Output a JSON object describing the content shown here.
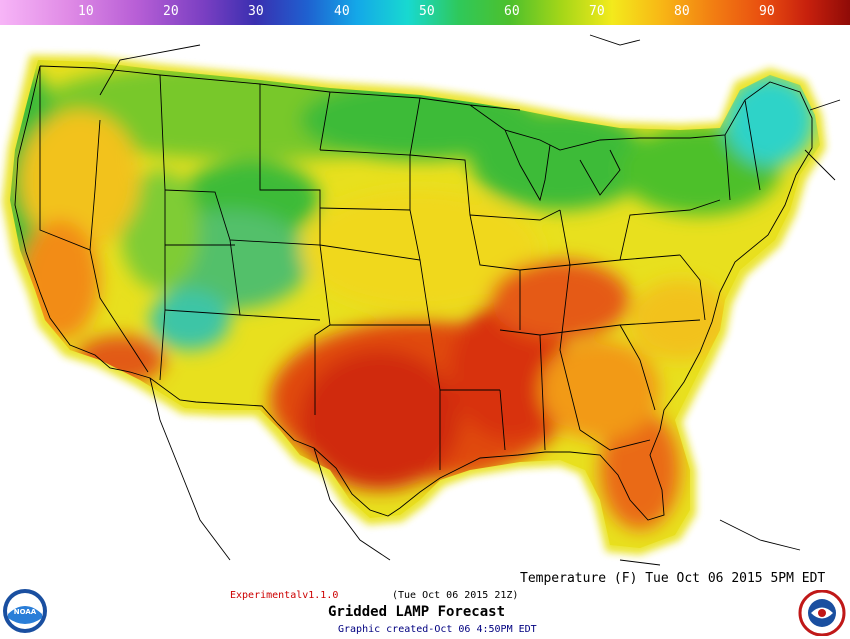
{
  "colorbar": {
    "ticks": [
      "10",
      "20",
      "30",
      "40",
      "50",
      "60",
      "70",
      "80",
      "90"
    ]
  },
  "map": {
    "valid_label": "Temperature (F) Tue Oct 06 2015  5PM EDT",
    "version_label": "Experimentalv1.1.0",
    "issue_label": "(Tue Oct 06 2015 21Z)",
    "product_title": "Gridded LAMP Forecast",
    "created_label": "Graphic created-Oct 06  4:50PM EDT"
  },
  "logos": {
    "left": "NOAA",
    "right": "NATIONAL WEATHER SERVICE"
  },
  "colors": {
    "hot": "#d8300e",
    "warm": "#f2a21a",
    "mild": "#e8e21e",
    "cool": "#3dbb39",
    "cold": "#2fd3c8"
  }
}
